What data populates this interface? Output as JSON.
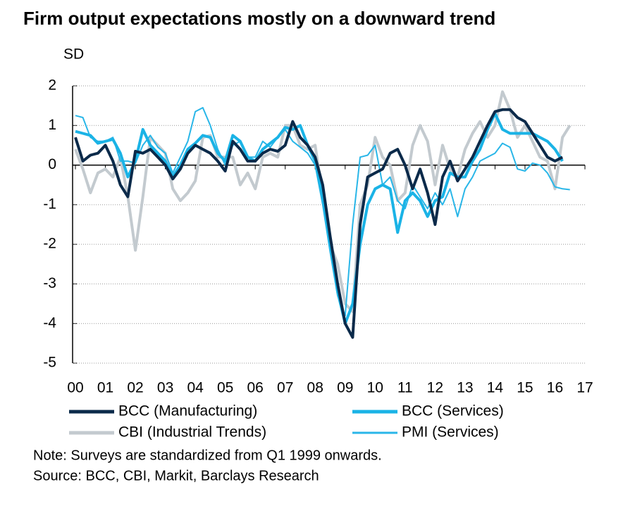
{
  "chart_data": {
    "type": "line",
    "title": "Firm output expectations mostly on a downward trend",
    "y_label": "SD",
    "notes": [
      "Note: Surveys are standardized from Q1 1999 onwards.",
      "Source: BCC, CBI, Markit, Barclays Research"
    ],
    "x": [
      2000,
      2000.25,
      2000.5,
      2000.75,
      2001,
      2001.25,
      2001.5,
      2001.75,
      2002,
      2002.25,
      2002.5,
      2002.75,
      2003,
      2003.25,
      2003.5,
      2003.75,
      2004,
      2004.25,
      2004.5,
      2004.75,
      2005,
      2005.25,
      2005.5,
      2005.75,
      2006,
      2006.25,
      2006.5,
      2006.75,
      2007,
      2007.25,
      2007.5,
      2007.75,
      2008,
      2008.25,
      2008.5,
      2008.75,
      2009,
      2009.25,
      2009.5,
      2009.75,
      2010,
      2010.25,
      2010.5,
      2010.75,
      2011,
      2011.25,
      2011.5,
      2011.75,
      2012,
      2012.25,
      2012.5,
      2012.75,
      2013,
      2013.25,
      2013.5,
      2013.75,
      2014,
      2014.25,
      2014.5,
      2014.75,
      2015,
      2015.25,
      2015.5,
      2015.75,
      2016,
      2016.25,
      2016.5
    ],
    "xlim": [
      2000,
      2017
    ],
    "xticks": [
      {
        "value": 2000,
        "label": "00"
      },
      {
        "value": 2001,
        "label": "01"
      },
      {
        "value": 2002,
        "label": "02"
      },
      {
        "value": 2003,
        "label": "03"
      },
      {
        "value": 2004,
        "label": "04"
      },
      {
        "value": 2005,
        "label": "05"
      },
      {
        "value": 2006,
        "label": "06"
      },
      {
        "value": 2007,
        "label": "07"
      },
      {
        "value": 2008,
        "label": "08"
      },
      {
        "value": 2009,
        "label": "09"
      },
      {
        "value": 2010,
        "label": "10"
      },
      {
        "value": 2011,
        "label": "11"
      },
      {
        "value": 2012,
        "label": "12"
      },
      {
        "value": 2013,
        "label": "13"
      },
      {
        "value": 2014,
        "label": "14"
      },
      {
        "value": 2015,
        "label": "15"
      },
      {
        "value": 2016,
        "label": "16"
      },
      {
        "value": 2017,
        "label": "17"
      }
    ],
    "ylim": [
      -5,
      2
    ],
    "yticks": [
      -5,
      -4,
      -3,
      -2,
      -1,
      0,
      1,
      2
    ],
    "grid": true,
    "series": [
      {
        "name": "CBI (Industrial Trends)",
        "color": "#c3cacf",
        "linewidth": 4,
        "values": [
          0.4,
          -0.1,
          -0.7,
          -0.2,
          -0.1,
          -0.3,
          0.2,
          -0.8,
          -2.15,
          -0.8,
          0.7,
          0.5,
          0.3,
          -0.6,
          -0.9,
          -0.7,
          -0.4,
          0.7,
          0.75,
          0.2,
          0.2,
          0.2,
          -0.5,
          -0.2,
          -0.6,
          0.2,
          0.3,
          0.2,
          1.0,
          1.0,
          0.5,
          0.4,
          0.5,
          -0.8,
          -2.0,
          -2.5,
          -3.5,
          -3.7,
          -1.0,
          -0.5,
          0.7,
          0.2,
          0.0,
          -0.9,
          -0.7,
          0.5,
          1.0,
          0.6,
          -0.5,
          0.5,
          -0.1,
          -0.3,
          0.4,
          0.8,
          1.1,
          0.7,
          1.0,
          1.85,
          1.4,
          0.7,
          1.0,
          0.6,
          0.2,
          0.1,
          -0.6,
          0.7,
          1.0
        ]
      },
      {
        "name": "PMI (Services)",
        "color": "#29b6e8",
        "linewidth": 2,
        "values": [
          1.25,
          1.2,
          0.7,
          0.6,
          0.6,
          0.7,
          0.1,
          0.1,
          0.05,
          0.5,
          0.75,
          0.45,
          0.3,
          -0.2,
          0.2,
          0.6,
          1.35,
          1.45,
          1.0,
          0.4,
          0.0,
          0.5,
          0.6,
          0.2,
          0.2,
          0.6,
          0.45,
          0.7,
          0.9,
          0.6,
          0.45,
          0.3,
          0.0,
          -1.0,
          -2.2,
          -3.3,
          -3.8,
          -1.5,
          0.2,
          0.25,
          0.5,
          -0.5,
          -0.3,
          -0.9,
          -1.1,
          -0.5,
          -0.8,
          -1.1,
          -0.7,
          -1.0,
          -0.6,
          -1.3,
          -0.6,
          -0.3,
          0.1,
          0.2,
          0.3,
          0.55,
          0.45,
          -0.1,
          -0.15,
          0.05,
          0.0,
          -0.2,
          -0.55,
          -0.6,
          -0.62
        ]
      },
      {
        "name": "BCC (Services)",
        "color": "#1ab3e6",
        "linewidth": 4,
        "values": [
          0.85,
          0.8,
          0.75,
          0.55,
          0.6,
          0.65,
          0.3,
          -0.3,
          0.1,
          0.9,
          0.5,
          0.3,
          0.1,
          -0.3,
          0.0,
          0.4,
          0.55,
          0.75,
          0.7,
          0.3,
          0.1,
          0.75,
          0.6,
          0.2,
          0.1,
          0.4,
          0.55,
          0.7,
          0.95,
          0.9,
          1.0,
          0.5,
          0.1,
          -0.8,
          -2.0,
          -3.2,
          -4.0,
          -3.5,
          -2.0,
          -1.0,
          -0.6,
          -0.5,
          -0.6,
          -1.7,
          -0.9,
          -0.7,
          -0.9,
          -1.3,
          -0.9,
          -0.8,
          -0.2,
          -0.3,
          -0.3,
          0.1,
          0.4,
          0.9,
          1.3,
          0.9,
          0.8,
          0.8,
          0.8,
          0.8,
          0.7,
          0.6,
          0.4,
          0.1,
          null
        ]
      },
      {
        "name": "BCC (Manufacturing)",
        "color": "#0b2a4a",
        "linewidth": 4,
        "values": [
          0.7,
          0.1,
          0.25,
          0.3,
          0.5,
          0.1,
          -0.5,
          -0.8,
          0.35,
          0.3,
          0.4,
          0.2,
          0.0,
          -0.35,
          -0.1,
          0.3,
          0.5,
          0.4,
          0.3,
          0.1,
          -0.15,
          0.6,
          0.4,
          0.1,
          0.1,
          0.3,
          0.4,
          0.35,
          0.5,
          1.1,
          0.7,
          0.5,
          0.2,
          -0.5,
          -1.8,
          -3.0,
          -4.0,
          -4.35,
          -1.5,
          -0.3,
          -0.2,
          -0.1,
          0.3,
          0.4,
          0.0,
          -0.6,
          -0.1,
          -0.7,
          -1.5,
          -0.3,
          0.1,
          -0.4,
          -0.1,
          0.2,
          0.6,
          1.0,
          1.35,
          1.4,
          1.4,
          1.2,
          1.1,
          0.8,
          0.5,
          0.2,
          0.1,
          0.2,
          null
        ]
      }
    ]
  }
}
